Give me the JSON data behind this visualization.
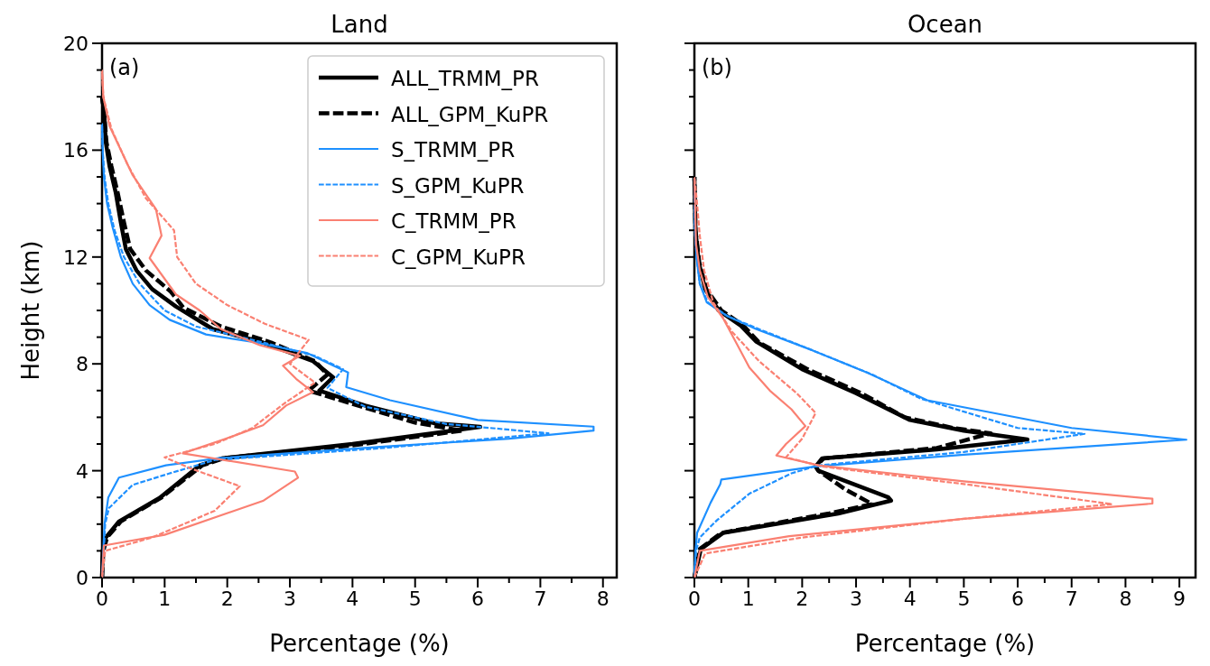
{
  "chart_data": [
    {
      "type": "line",
      "title": "Land",
      "xlabel": "Percentage (%)",
      "ylabel": "Height (km)",
      "annotations": [
        "(a)"
      ],
      "legend": "top right",
      "grid": false,
      "xlim": [
        0,
        8.22
      ],
      "ylim": [
        0,
        20
      ],
      "xticks": [
        0,
        {
          "value": 0.5,
          "label": null
        },
        1,
        {
          "value": 1.5,
          "label": null
        },
        2,
        {
          "value": 2.5,
          "label": null
        },
        3,
        {
          "value": 3.5,
          "label": null
        },
        4,
        {
          "value": 4.5,
          "label": null
        },
        5,
        {
          "value": 5.5,
          "label": null
        },
        6,
        {
          "value": 6.5,
          "label": null
        },
        7,
        {
          "value": 7.5,
          "label": null
        },
        8
      ],
      "yticks": [
        0,
        {
          "value": 1,
          "label": null
        },
        {
          "value": 2,
          "label": null
        },
        {
          "value": 3,
          "label": null
        },
        4,
        {
          "value": 5,
          "label": null
        },
        {
          "value": 6,
          "label": null
        },
        {
          "value": 7,
          "label": null
        },
        8,
        {
          "value": 9,
          "label": null
        },
        {
          "value": 10,
          "label": null
        },
        {
          "value": 11,
          "label": null
        },
        12,
        {
          "value": 13,
          "label": null
        },
        {
          "value": 14,
          "label": null
        },
        {
          "value": 15,
          "label": null
        },
        16,
        {
          "value": 17,
          "label": null
        },
        {
          "value": 18,
          "label": null
        },
        {
          "value": 19,
          "label": null
        },
        20
      ],
      "series": [
        {
          "name": "ALL_TRMM_PR",
          "color": "#000000",
          "line_style": "solid",
          "x": [
            0,
            0.01,
            0.06,
            0.27,
            0.92,
            1.56,
            1.93,
            4,
            6.04,
            5.3,
            4.2,
            3.47,
            3.69,
            3.37,
            2.57,
            1.77,
            1.18,
            0.8,
            0.55,
            0.38,
            0.3,
            0.22,
            0.12,
            0.06,
            0.03,
            0
          ],
          "values": [
            0,
            1,
            1.5,
            2.1,
            2.98,
            4.2,
            4.47,
            5,
            5.64,
            5.78,
            6.44,
            7,
            7.5,
            8.1,
            8.8,
            9.3,
            10.15,
            10.8,
            11.5,
            12.3,
            13.3,
            14.4,
            15.4,
            16.3,
            17.5,
            18
          ]
        },
        {
          "name": "ALL_GPM_KuPR",
          "color": "#000000",
          "line_style": "dashed",
          "x": [
            0,
            0.02,
            0.08,
            0.3,
            0.95,
            1.6,
            1.95,
            4,
            5.75,
            5,
            4,
            3.3,
            3.6,
            3.4,
            2.7,
            1.9,
            1.3,
            1.1,
            0.7,
            0.45,
            0.35,
            0.25,
            0.15,
            0.07,
            0.03,
            0
          ],
          "values": [
            0,
            1,
            1.5,
            2.1,
            3,
            4.2,
            4.47,
            4.95,
            5.5,
            5.8,
            6.5,
            7,
            7.6,
            8.1,
            8.8,
            9.4,
            10.1,
            10.7,
            11.5,
            12.3,
            13.3,
            14.4,
            15.4,
            16.3,
            17.5,
            18
          ]
        },
        {
          "name": "S_TRMM_PR",
          "color": "#1e90ff",
          "line_style": "solid",
          "x": [
            0,
            0.02,
            0.04,
            0.1,
            0.27,
            1.02,
            1.87,
            4.5,
            6.5,
            7.85,
            7.85,
            6,
            4.6,
            3.9,
            3.93,
            3.69,
            3.27,
            2.46,
            1.66,
            1.08,
            0.76,
            0.49,
            0.3,
            0.17,
            0.08,
            0.03,
            0.01,
            0
          ],
          "values": [
            0,
            1,
            2,
            3,
            3.74,
            4.2,
            4.47,
            4.9,
            5.2,
            5.5,
            5.65,
            5.9,
            6.64,
            7.13,
            7.68,
            7.94,
            8.41,
            8.8,
            9.1,
            9.65,
            10.2,
            11,
            12,
            13.1,
            14,
            15,
            16,
            17
          ]
        },
        {
          "name": "S_GPM_KuPR",
          "color": "#1e90ff",
          "line_style": "dashed",
          "x": [
            0,
            0.03,
            0.05,
            0.11,
            0.49,
            1.08,
            1.8,
            4.5,
            7.13,
            5.5,
            4.2,
            3.6,
            3.85,
            3.4,
            2.4,
            1.5,
            1,
            0.6,
            0.35,
            0.2,
            0.1,
            0.04,
            0.01,
            0
          ],
          "values": [
            0,
            1,
            2,
            2.6,
            3.47,
            3.9,
            4.4,
            4.85,
            5.4,
            5.75,
            6.4,
            7.1,
            7.8,
            8.3,
            8.9,
            9.4,
            10,
            11,
            12,
            13,
            14,
            15,
            16,
            17
          ]
        },
        {
          "name": "C_TRMM_PR",
          "color": "#fa8072",
          "line_style": "solid",
          "x": [
            0,
            0.03,
            1,
            2.57,
            3.13,
            3.08,
            1.29,
            1.98,
            2.57,
            2.94,
            3.37,
            3.1,
            2.89,
            3.16,
            2.52,
            1.9,
            1.56,
            1.18,
            0.76,
            0.95,
            0.86,
            0.49,
            0.12,
            0.02,
            0
          ],
          "values": [
            0,
            1.2,
            1.6,
            2.87,
            3.74,
            3.97,
            4.65,
            5.2,
            5.7,
            6.44,
            6.94,
            7.44,
            7.93,
            8.3,
            8.7,
            9.3,
            10,
            10.6,
            11.96,
            12.8,
            13.8,
            15.06,
            16.9,
            18,
            19
          ]
        },
        {
          "name": "C_GPM_KuPR",
          "color": "#fa8072",
          "line_style": "dashed",
          "x": [
            0,
            0.05,
            0.8,
            1.8,
            2.2,
            1.4,
            1,
            1.8,
            2.4,
            2.9,
            3.4,
            3,
            3.3,
            2.6,
            2,
            1.5,
            1.2,
            1.15,
            0.7,
            0.4,
            0.15,
            0.02,
            0
          ],
          "values": [
            0,
            1,
            1.5,
            2.5,
            3.42,
            4.1,
            4.5,
            5,
            5.6,
            6.5,
            7.3,
            8,
            8.9,
            9.5,
            10.2,
            11,
            12,
            13,
            14.2,
            15.5,
            16.8,
            18,
            19
          ]
        }
      ]
    },
    {
      "type": "line",
      "title": "Ocean",
      "xlabel": "Percentage (%)",
      "annotations": [
        "(b)"
      ],
      "legend": false,
      "grid": false,
      "tick_labels": "x",
      "xlim": [
        0,
        9.3
      ],
      "ylim": [
        0,
        20
      ],
      "xticks": [
        0,
        {
          "value": 0.5,
          "label": null
        },
        1,
        {
          "value": 1.5,
          "label": null
        },
        2,
        {
          "value": 2.5,
          "label": null
        },
        3,
        {
          "value": 3.5,
          "label": null
        },
        4,
        {
          "value": 4.5,
          "label": null
        },
        5,
        {
          "value": 5.5,
          "label": null
        },
        6,
        {
          "value": 6.5,
          "label": null
        },
        7,
        {
          "value": 7.5,
          "label": null
        },
        8,
        {
          "value": 8.5,
          "label": null
        },
        9
      ],
      "yticks": [
        0,
        {
          "value": 1,
          "label": null
        },
        {
          "value": 2,
          "label": null
        },
        {
          "value": 3,
          "label": null
        },
        4,
        {
          "value": 5,
          "label": null
        },
        {
          "value": 6,
          "label": null
        },
        {
          "value": 7,
          "label": null
        },
        8,
        {
          "value": 9,
          "label": null
        },
        {
          "value": 10,
          "label": null
        },
        {
          "value": 11,
          "label": null
        },
        12,
        {
          "value": 13,
          "label": null
        },
        {
          "value": 14,
          "label": null
        },
        {
          "value": 15,
          "label": null
        },
        16,
        {
          "value": 17,
          "label": null
        },
        {
          "value": 18,
          "label": null
        },
        {
          "value": 19,
          "label": null
        },
        20
      ],
      "series": [
        {
          "color": "#000000",
          "line_style": "solid",
          "x": [
            0,
            0.12,
            0.53,
            2.67,
            3.65,
            3.6,
            2.3,
            2.25,
            2.37,
            4.5,
            6.18,
            5,
            4,
            3,
            2,
            1.15,
            0.85,
            0.45,
            0.2,
            0.08,
            0.02,
            0
          ],
          "values": [
            0,
            1.07,
            1.67,
            2.4,
            2.88,
            3,
            4,
            4.16,
            4.46,
            4.8,
            5.17,
            5.5,
            5.9,
            6.9,
            7.8,
            8.83,
            9.45,
            10,
            10.8,
            11.8,
            13,
            15
          ]
        },
        {
          "color": "#000000",
          "line_style": "dashed",
          "x": [
            0,
            0.1,
            0.5,
            2.5,
            3.3,
            2.8,
            2.3,
            2.25,
            2.4,
            4.5,
            5.5,
            4.8,
            3.9,
            3.1,
            2.1,
            1.2,
            0.9,
            0.5,
            0.22,
            0.09,
            0.02,
            0
          ],
          "values": [
            0,
            1.07,
            1.67,
            2.4,
            2.75,
            3.3,
            4,
            4.16,
            4.46,
            4.85,
            5.4,
            5.6,
            6,
            6.9,
            7.8,
            8.8,
            9.45,
            10,
            10.8,
            11.8,
            13,
            15
          ]
        },
        {
          "color": "#1e90ff",
          "line_style": "solid",
          "x": [
            0,
            0.02,
            0.05,
            0.3,
            0.48,
            0.5,
            1.5,
            2.25,
            5,
            9.13,
            7,
            4.32,
            3.2,
            2.2,
            1.15,
            0.6,
            0.23,
            0.1,
            0.04,
            0.01,
            0
          ],
          "values": [
            0,
            1,
            1.67,
            2.8,
            3.5,
            3.67,
            3.95,
            4.16,
            4.6,
            5.16,
            5.6,
            6.64,
            7.68,
            8.5,
            9.3,
            9.8,
            10.3,
            11,
            12,
            13,
            15
          ]
        },
        {
          "color": "#1e90ff",
          "line_style": "dashed",
          "x": [
            0,
            0.03,
            0.1,
            0.42,
            1.02,
            1.8,
            2.3,
            5,
            7.24,
            6,
            4.2,
            3.3,
            2.2,
            1.2,
            0.6,
            0.25,
            0.1,
            0.04,
            0.01,
            0
          ],
          "values": [
            0,
            1,
            1.5,
            2.15,
            3.14,
            3.9,
            4.2,
            4.7,
            5.38,
            5.6,
            6.7,
            7.6,
            8.5,
            9.3,
            9.8,
            10.3,
            11,
            12,
            13,
            15
          ]
        },
        {
          "color": "#fa8072",
          "line_style": "solid",
          "x": [
            0,
            0.1,
            1.76,
            5,
            8.5,
            8.5,
            5,
            2.3,
            1.52,
            1.7,
            2.06,
            1.8,
            1.4,
            1.02,
            0.8,
            0.54,
            0.25,
            0.1,
            0.03,
            0
          ],
          "values": [
            0,
            1,
            1.55,
            2.2,
            2.77,
            2.95,
            3.6,
            4.2,
            4.57,
            5,
            5.67,
            6.3,
            7,
            7.86,
            8.7,
            9.68,
            10.5,
            11.5,
            12.5,
            15
          ]
        },
        {
          "color": "#fa8072",
          "line_style": "dashed",
          "x": [
            0,
            0.2,
            2,
            5,
            7.75,
            5,
            2.4,
            1.7,
            2,
            2.25,
            1.9,
            1.2,
            0.7,
            0.35,
            0.18,
            0.1,
            0.05,
            0
          ],
          "values": [
            0,
            0.9,
            1.5,
            2.2,
            2.75,
            3.5,
            4.15,
            4.5,
            5.2,
            6.16,
            6.9,
            8.1,
            9.2,
            10.3,
            11.5,
            12.8,
            14,
            15
          ]
        }
      ]
    }
  ]
}
